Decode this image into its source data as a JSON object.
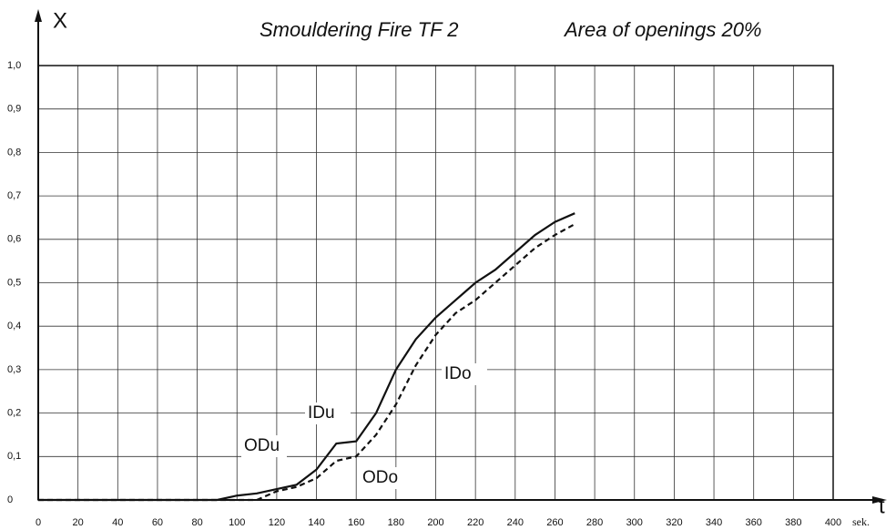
{
  "chart_data": {
    "type": "line",
    "title": "Smouldering Fire TF 2",
    "subtitle": "Area of openings 20%",
    "y_label": "X",
    "x_label": "t",
    "x_unit": "sek.",
    "x": [
      0,
      90,
      100,
      110,
      120,
      130,
      140,
      150,
      160,
      170,
      180,
      190,
      200,
      210,
      220,
      230,
      240,
      250,
      260,
      270
    ],
    "series": [
      {
        "color": "#111111",
        "dash": "solid",
        "values": [
          0,
          0,
          0.01,
          0.015,
          0.025,
          0.035,
          0.07,
          0.13,
          0.135,
          0.2,
          0.3,
          0.37,
          0.42,
          0.46,
          0.5,
          0.53,
          0.57,
          0.61,
          0.64,
          0.66
        ]
      },
      {
        "color": "#111111",
        "dash": "dashed",
        "values": [
          0,
          0,
          0,
          0,
          0.02,
          0.03,
          0.05,
          0.09,
          0.1,
          0.15,
          0.22,
          0.31,
          0.38,
          0.43,
          0.46,
          0.5,
          0.54,
          0.58,
          0.61,
          0.635
        ]
      }
    ],
    "annotations": [
      "ODu",
      "IDu",
      "IDo",
      "ODo"
    ],
    "xlim": [
      0,
      400
    ],
    "xticks": [
      0,
      20,
      40,
      60,
      80,
      100,
      120,
      140,
      160,
      180,
      200,
      220,
      240,
      260,
      280,
      300,
      320,
      340,
      360,
      380,
      400
    ],
    "ylim": [
      0,
      1
    ],
    "yticks": [
      0,
      {
        "value": 0.1,
        "label": "0,1"
      },
      {
        "value": 0.2,
        "label": "0,2"
      },
      {
        "value": 0.3,
        "label": "0,3"
      },
      {
        "value": 0.4,
        "label": "0,4"
      },
      {
        "value": 0.5,
        "label": "0,5"
      },
      {
        "value": 0.6,
        "label": "0,6"
      },
      {
        "value": 0.7,
        "label": "0,7"
      },
      {
        "value": 0.8,
        "label": "0,8"
      },
      {
        "value": 0.9,
        "label": "0,9"
      },
      {
        "value": 1,
        "label": "1,0"
      }
    ],
    "grid": true
  }
}
